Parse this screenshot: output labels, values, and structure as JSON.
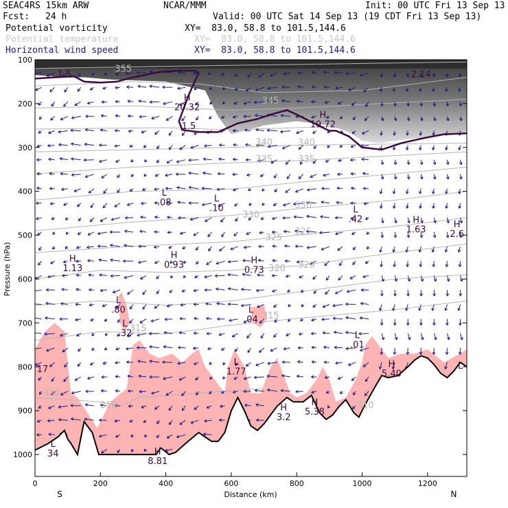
{
  "header": {
    "model": "SEAC4RS 15km ARW",
    "org": "NCAR/MMM",
    "init": "Init: 00 UTC Fri 13 Sep 13",
    "fcst_label": "Fcst:",
    "fcst_value": "24 h",
    "valid": "Valid: 00 UTC Sat 14 Sep 13 (19 CDT Fri 13 Sep 13)"
  },
  "fields": [
    {
      "name": "Potential vorticity",
      "xy": "XY=  83.0, 58.8 to 101.5,144.6",
      "color": "#000000"
    },
    {
      "name": "Potential temperature",
      "xy": "XY=  83.0, 58.8 to 101.5,144.6",
      "color": "#c8c8c8"
    },
    {
      "name": "Horizontal wind speed",
      "xy": "XY=  83.0, 58.8 to 101.5,144.6",
      "color": "#1a1a8a"
    }
  ],
  "chart_data": {
    "type": "cross-section",
    "xlabel": "Distance (km)",
    "ylabel": "Pressure (hPa)",
    "xlim": [
      0,
      1320
    ],
    "ylim": [
      1050,
      100
    ],
    "x_ticks": [
      0,
      200,
      400,
      600,
      800,
      1000,
      1200
    ],
    "y_ticks": [
      100,
      200,
      300,
      400,
      500,
      600,
      700,
      800,
      900,
      1000
    ],
    "endpoint_labels": {
      "left": "S",
      "right": "N"
    },
    "colors": {
      "theta": "#b4b4b4",
      "wind": "#1a1a8a",
      "pv_line": "#3c0a3c",
      "pv_fill": "#ffb4b4",
      "terrain": "#000000"
    },
    "theta_labels": [
      {
        "x": 270,
        "p": 127,
        "v": "355"
      },
      {
        "x": 720,
        "p": 200,
        "v": "345"
      },
      {
        "x": 700,
        "p": 295,
        "v": "340"
      },
      {
        "x": 830,
        "p": 295,
        "v": "340"
      },
      {
        "x": 700,
        "p": 333,
        "v": "335"
      },
      {
        "x": 830,
        "p": 333,
        "v": "335"
      },
      {
        "x": 660,
        "p": 460,
        "v": "330"
      },
      {
        "x": 820,
        "p": 438,
        "v": "330"
      },
      {
        "x": 730,
        "p": 512,
        "v": "325"
      },
      {
        "x": 820,
        "p": 498,
        "v": "325"
      },
      {
        "x": 740,
        "p": 582,
        "v": "320"
      },
      {
        "x": 830,
        "p": 574,
        "v": "320"
      },
      {
        "x": 720,
        "p": 690,
        "v": "315"
      },
      {
        "x": 315,
        "p": 719,
        "v": "315"
      },
      {
        "x": 50,
        "p": 866,
        "v": "310"
      },
      {
        "x": 225,
        "p": 894,
        "v": "310"
      },
      {
        "x": 1010,
        "p": 894,
        "v": "310"
      }
    ],
    "extrema": [
      {
        "kind": "H",
        "x": 465,
        "p": 193,
        "v": "20.32"
      },
      {
        "kind": "H",
        "x": 880,
        "p": 232,
        "v": "19.72"
      },
      {
        "kind": "H",
        "x": 1165,
        "p": 472,
        "v": "1.63"
      },
      {
        "kind": "H",
        "x": 1290,
        "p": 482,
        "v": "2.6"
      },
      {
        "kind": "H",
        "x": 115,
        "p": 560,
        "v": "1.13"
      },
      {
        "kind": "H",
        "x": 425,
        "p": 552,
        "v": "0.93"
      },
      {
        "kind": "H",
        "x": 670,
        "p": 564,
        "v": "0.73"
      },
      {
        "kind": "H",
        "x": 1090,
        "p": 800,
        "v": "5.40"
      },
      {
        "kind": "H",
        "x": 855,
        "p": 887,
        "v": "5.38"
      },
      {
        "kind": "H",
        "x": 760,
        "p": 900,
        "v": "3.2"
      },
      {
        "kind": "H",
        "x": 375,
        "p": 1000,
        "v": "8.81"
      },
      {
        "kind": "L",
        "x": 395,
        "p": 410,
        "v": ".08"
      },
      {
        "kind": "L",
        "x": 555,
        "p": 423,
        "v": ".10"
      },
      {
        "kind": "L",
        "x": 980,
        "p": 448,
        "v": ".42"
      },
      {
        "kind": "L",
        "x": 255,
        "p": 655,
        "v": ".80"
      },
      {
        "kind": "L",
        "x": 275,
        "p": 708,
        "v": ".32"
      },
      {
        "kind": "L",
        "x": 660,
        "p": 677,
        "v": ".04"
      },
      {
        "kind": "L",
        "x": 985,
        "p": 735,
        "v": ".01"
      },
      {
        "kind": "L",
        "x": 615,
        "p": 796,
        "v": "1.77"
      },
      {
        "kind": "L",
        "x": 1300,
        "p": 804,
        "v": ""
      },
      {
        "kind": "L",
        "x": 55,
        "p": 983,
        "v": "34"
      }
    ],
    "pv_values": [
      {
        "x": 90,
        "p": 140,
        "v": "1.5"
      },
      {
        "x": 470,
        "p": 258,
        "v": "1.5"
      },
      {
        "x": 1180,
        "p": 140,
        "v": "2.14"
      },
      {
        "x": 0,
        "p": 812,
        "v": "17"
      }
    ]
  }
}
